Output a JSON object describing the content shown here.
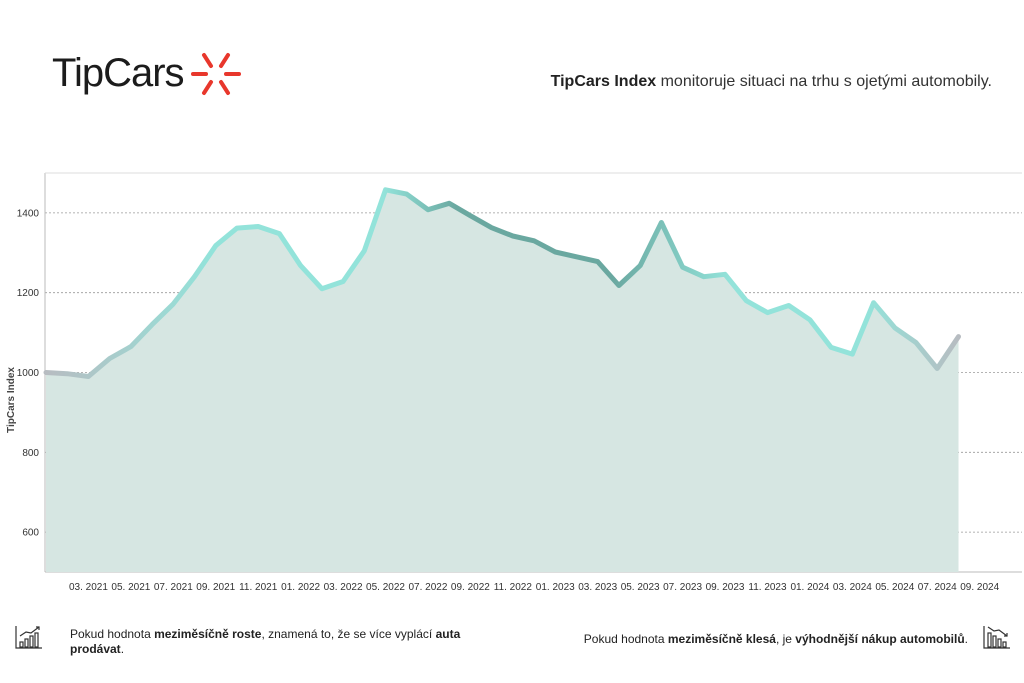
{
  "brand": {
    "name": "TipCars",
    "accent": "#e8372c"
  },
  "header": {
    "tagline_bold": "TipCars Index",
    "tagline_rest": " monitoruje situaci na trhu s ojetými automobily."
  },
  "footer": {
    "left": {
      "p1": "Pokud hodnota ",
      "b1": "meziměsíčně roste",
      "p2": ", znamená to, že se více vyplácí ",
      "b2": "auta prodávat",
      "p3": "."
    },
    "right": {
      "p1": "Pokud hodnota ",
      "b1": "meziměsíčně klesá",
      "p2": ", je ",
      "b2": "výhodnější nákup automobilů",
      "p3": "."
    },
    "left_icon": "rising-bar-chart-icon",
    "right_icon": "falling-bar-chart-icon"
  },
  "chart_data": {
    "type": "area",
    "ylabel": "TipCars Index",
    "xlabel": "",
    "ylim": [
      500,
      1500
    ],
    "yticks": [
      600,
      800,
      1000,
      1200,
      1400
    ],
    "grid": "horizontal dotted",
    "x_tick_labels": [
      "03. 2021",
      "05. 2021",
      "07. 2021",
      "09. 2021",
      "11. 2021",
      "01. 2022",
      "03. 2022",
      "05. 2022",
      "07. 2022",
      "09. 2022",
      "11. 2022",
      "01. 2023",
      "03. 2023",
      "05. 2023",
      "07. 2023",
      "09. 2023",
      "11. 2023",
      "01. 2024",
      "03. 2024",
      "05. 2024",
      "07. 2024",
      "09. 2024"
    ],
    "x_start": "01. 2021",
    "values": [
      1000,
      997,
      990,
      1035,
      1065,
      1120,
      1172,
      1240,
      1318,
      1362,
      1366,
      1348,
      1268,
      1210,
      1228,
      1305,
      1458,
      1447,
      1408,
      1424,
      1393,
      1363,
      1342,
      1330,
      1302,
      1290,
      1278,
      1218,
      1268,
      1376,
      1264,
      1240,
      1246,
      1180,
      1150,
      1168,
      1132,
      1063,
      1046,
      1175,
      1112,
      1075,
      1010,
      1090
    ],
    "fill_color": "#d6e6e2",
    "line_colors": [
      "#b7bcc1",
      "#93e3da",
      "#6aa8a0"
    ]
  }
}
